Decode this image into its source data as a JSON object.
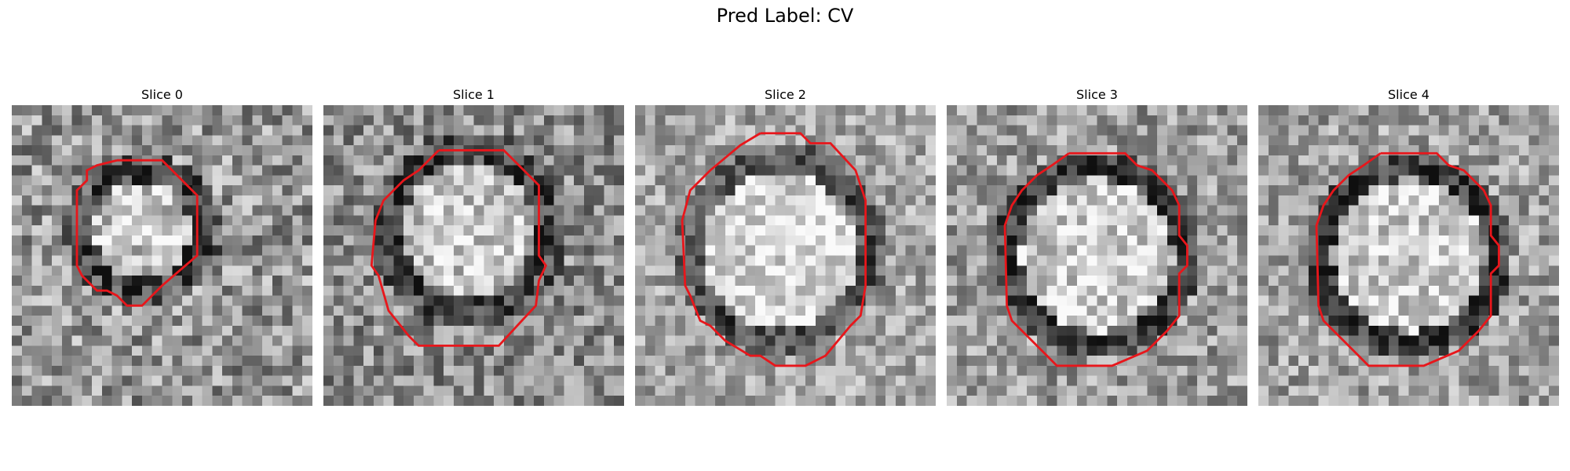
{
  "figure": {
    "title": "Pred Label: CV"
  },
  "slices": [
    {
      "title": "Slice 0"
    },
    {
      "title": "Slice 1"
    },
    {
      "title": "Slice 2"
    },
    {
      "title": "Slice 3"
    },
    {
      "title": "Slice 4"
    }
  ],
  "colors": {
    "contour": "#e8161b"
  }
}
